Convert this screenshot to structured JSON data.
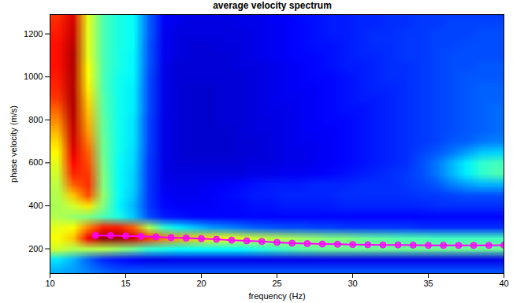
{
  "chart_data": {
    "type": "heatmap",
    "title": "average velocity spectrum",
    "x_label": "frequency (Hz)",
    "y_label": "phase velocity (m/s)",
    "xlim": [
      10,
      40
    ],
    "ylim": [
      85,
      1290
    ],
    "xticks": [
      10,
      15,
      20,
      25,
      30,
      35,
      40
    ],
    "yticks": [
      200,
      400,
      600,
      800,
      1000,
      1200
    ],
    "heatmap": {
      "x": [
        10.5,
        11.5,
        12.5,
        13.5,
        14.5,
        15.5,
        16.5,
        17.5,
        18.5,
        19.5,
        20.5,
        21.5,
        22.5,
        23.5,
        24.5,
        25.5,
        26.5,
        27.5,
        28.5,
        29.5,
        30.5,
        31.5,
        32.5,
        33.5,
        34.5,
        35.5,
        36.5,
        37.5,
        38.5,
        39.5
      ],
      "y": [
        1300,
        1250,
        1200,
        1150,
        1100,
        1050,
        1000,
        950,
        900,
        850,
        800,
        750,
        700,
        650,
        600,
        550,
        500,
        450,
        400,
        350,
        300,
        250,
        200,
        150,
        100
      ],
      "zlim": [
        0,
        1
      ],
      "values": [
        [
          0.82,
          0.9,
          0.6,
          0.45,
          0.4,
          0.38,
          0.22,
          0.12,
          0.1,
          0.1,
          0.1,
          0.1,
          0.1,
          0.1,
          0.12,
          0.12,
          0.14,
          0.14,
          0.15,
          0.15,
          0.16,
          0.16,
          0.17,
          0.17,
          0.18,
          0.18,
          0.18,
          0.18,
          0.18,
          0.18
        ],
        [
          0.84,
          0.92,
          0.6,
          0.45,
          0.4,
          0.38,
          0.22,
          0.12,
          0.1,
          0.09,
          0.09,
          0.09,
          0.1,
          0.1,
          0.11,
          0.12,
          0.13,
          0.14,
          0.15,
          0.15,
          0.16,
          0.16,
          0.17,
          0.17,
          0.18,
          0.18,
          0.19,
          0.19,
          0.19,
          0.19
        ],
        [
          0.85,
          0.93,
          0.6,
          0.45,
          0.4,
          0.38,
          0.22,
          0.11,
          0.09,
          0.09,
          0.09,
          0.09,
          0.09,
          0.1,
          0.11,
          0.12,
          0.13,
          0.14,
          0.15,
          0.15,
          0.16,
          0.17,
          0.17,
          0.18,
          0.18,
          0.19,
          0.19,
          0.19,
          0.2,
          0.2
        ],
        [
          0.86,
          0.94,
          0.6,
          0.45,
          0.4,
          0.38,
          0.21,
          0.11,
          0.09,
          0.08,
          0.08,
          0.09,
          0.09,
          0.1,
          0.11,
          0.12,
          0.13,
          0.14,
          0.14,
          0.15,
          0.16,
          0.17,
          0.17,
          0.18,
          0.18,
          0.19,
          0.19,
          0.2,
          0.2,
          0.2
        ],
        [
          0.86,
          0.95,
          0.6,
          0.45,
          0.4,
          0.37,
          0.21,
          0.11,
          0.09,
          0.08,
          0.08,
          0.08,
          0.09,
          0.1,
          0.11,
          0.12,
          0.13,
          0.13,
          0.14,
          0.15,
          0.16,
          0.16,
          0.17,
          0.18,
          0.18,
          0.19,
          0.2,
          0.2,
          0.2,
          0.2
        ],
        [
          0.86,
          0.95,
          0.62,
          0.45,
          0.4,
          0.37,
          0.21,
          0.1,
          0.08,
          0.08,
          0.08,
          0.08,
          0.09,
          0.09,
          0.1,
          0.11,
          0.12,
          0.13,
          0.14,
          0.15,
          0.15,
          0.16,
          0.17,
          0.17,
          0.18,
          0.19,
          0.2,
          0.2,
          0.21,
          0.21
        ],
        [
          0.85,
          0.95,
          0.62,
          0.45,
          0.39,
          0.37,
          0.2,
          0.1,
          0.08,
          0.08,
          0.08,
          0.08,
          0.08,
          0.09,
          0.1,
          0.11,
          0.12,
          0.13,
          0.13,
          0.14,
          0.15,
          0.16,
          0.17,
          0.17,
          0.18,
          0.19,
          0.2,
          0.21,
          0.21,
          0.21
        ],
        [
          0.84,
          0.95,
          0.64,
          0.45,
          0.39,
          0.36,
          0.2,
          0.1,
          0.08,
          0.07,
          0.07,
          0.08,
          0.08,
          0.09,
          0.1,
          0.11,
          0.12,
          0.12,
          0.13,
          0.14,
          0.15,
          0.16,
          0.16,
          0.17,
          0.18,
          0.19,
          0.2,
          0.21,
          0.22,
          0.22
        ],
        [
          0.82,
          0.95,
          0.66,
          0.46,
          0.39,
          0.36,
          0.2,
          0.1,
          0.08,
          0.07,
          0.07,
          0.08,
          0.08,
          0.09,
          0.1,
          0.11,
          0.11,
          0.12,
          0.13,
          0.14,
          0.15,
          0.15,
          0.16,
          0.17,
          0.18,
          0.19,
          0.2,
          0.21,
          0.22,
          0.22
        ],
        [
          0.78,
          0.95,
          0.68,
          0.46,
          0.39,
          0.36,
          0.2,
          0.1,
          0.08,
          0.07,
          0.07,
          0.08,
          0.08,
          0.09,
          0.1,
          0.1,
          0.11,
          0.12,
          0.13,
          0.14,
          0.14,
          0.15,
          0.16,
          0.17,
          0.18,
          0.19,
          0.2,
          0.21,
          0.22,
          0.23
        ],
        [
          0.74,
          0.94,
          0.7,
          0.47,
          0.39,
          0.35,
          0.19,
          0.1,
          0.08,
          0.07,
          0.07,
          0.08,
          0.08,
          0.09,
          0.09,
          0.1,
          0.11,
          0.12,
          0.13,
          0.13,
          0.14,
          0.15,
          0.16,
          0.17,
          0.18,
          0.19,
          0.2,
          0.21,
          0.22,
          0.23
        ],
        [
          0.7,
          0.93,
          0.72,
          0.47,
          0.39,
          0.35,
          0.19,
          0.1,
          0.08,
          0.07,
          0.07,
          0.07,
          0.08,
          0.09,
          0.09,
          0.1,
          0.11,
          0.12,
          0.12,
          0.13,
          0.14,
          0.15,
          0.16,
          0.17,
          0.18,
          0.19,
          0.2,
          0.21,
          0.22,
          0.23
        ],
        [
          0.66,
          0.92,
          0.75,
          0.48,
          0.39,
          0.35,
          0.19,
          0.1,
          0.08,
          0.07,
          0.07,
          0.07,
          0.08,
          0.08,
          0.09,
          0.1,
          0.11,
          0.11,
          0.12,
          0.13,
          0.14,
          0.15,
          0.16,
          0.17,
          0.18,
          0.19,
          0.21,
          0.22,
          0.24,
          0.25
        ],
        [
          0.63,
          0.9,
          0.78,
          0.48,
          0.39,
          0.34,
          0.19,
          0.1,
          0.08,
          0.07,
          0.07,
          0.07,
          0.08,
          0.08,
          0.09,
          0.1,
          0.1,
          0.11,
          0.12,
          0.13,
          0.14,
          0.15,
          0.16,
          0.17,
          0.19,
          0.21,
          0.24,
          0.28,
          0.32,
          0.33
        ],
        [
          0.6,
          0.87,
          0.8,
          0.49,
          0.38,
          0.34,
          0.18,
          0.1,
          0.08,
          0.08,
          0.08,
          0.08,
          0.08,
          0.09,
          0.09,
          0.1,
          0.1,
          0.11,
          0.12,
          0.13,
          0.14,
          0.15,
          0.16,
          0.17,
          0.2,
          0.24,
          0.3,
          0.36,
          0.42,
          0.44
        ],
        [
          0.58,
          0.84,
          0.82,
          0.5,
          0.38,
          0.33,
          0.18,
          0.1,
          0.09,
          0.09,
          0.09,
          0.09,
          0.09,
          0.1,
          0.1,
          0.11,
          0.11,
          0.12,
          0.13,
          0.14,
          0.15,
          0.16,
          0.17,
          0.18,
          0.2,
          0.24,
          0.3,
          0.36,
          0.42,
          0.45
        ],
        [
          0.56,
          0.78,
          0.83,
          0.5,
          0.38,
          0.33,
          0.18,
          0.11,
          0.1,
          0.1,
          0.11,
          0.12,
          0.13,
          0.14,
          0.15,
          0.15,
          0.15,
          0.16,
          0.16,
          0.16,
          0.17,
          0.17,
          0.17,
          0.18,
          0.19,
          0.21,
          0.25,
          0.28,
          0.3,
          0.3
        ],
        [
          0.55,
          0.68,
          0.8,
          0.52,
          0.38,
          0.32,
          0.18,
          0.12,
          0.11,
          0.11,
          0.12,
          0.13,
          0.14,
          0.15,
          0.15,
          0.16,
          0.16,
          0.16,
          0.16,
          0.17,
          0.17,
          0.17,
          0.17,
          0.17,
          0.18,
          0.18,
          0.19,
          0.2,
          0.2,
          0.2
        ],
        [
          0.54,
          0.58,
          0.65,
          0.5,
          0.37,
          0.3,
          0.18,
          0.13,
          0.12,
          0.12,
          0.12,
          0.13,
          0.13,
          0.14,
          0.14,
          0.15,
          0.15,
          0.15,
          0.15,
          0.16,
          0.16,
          0.16,
          0.16,
          0.16,
          0.16,
          0.17,
          0.17,
          0.17,
          0.17,
          0.17
        ],
        [
          0.55,
          0.52,
          0.5,
          0.45,
          0.4,
          0.32,
          0.2,
          0.15,
          0.14,
          0.13,
          0.13,
          0.13,
          0.13,
          0.13,
          0.13,
          0.13,
          0.13,
          0.13,
          0.13,
          0.13,
          0.13,
          0.13,
          0.13,
          0.13,
          0.13,
          0.13,
          0.13,
          0.13,
          0.13,
          0.13
        ],
        [
          0.6,
          0.62,
          0.75,
          0.85,
          0.85,
          0.78,
          0.55,
          0.42,
          0.36,
          0.32,
          0.28,
          0.26,
          0.24,
          0.22,
          0.21,
          0.2,
          0.2,
          0.19,
          0.19,
          0.18,
          0.18,
          0.18,
          0.18,
          0.18,
          0.17,
          0.17,
          0.17,
          0.17,
          0.17,
          0.17
        ],
        [
          0.62,
          0.68,
          0.88,
          0.98,
          0.97,
          0.92,
          0.82,
          0.76,
          0.72,
          0.68,
          0.65,
          0.62,
          0.6,
          0.58,
          0.56,
          0.55,
          0.53,
          0.52,
          0.5,
          0.5,
          0.48,
          0.47,
          0.46,
          0.45,
          0.45,
          0.44,
          0.44,
          0.44,
          0.44,
          0.44
        ],
        [
          0.58,
          0.55,
          0.55,
          0.55,
          0.52,
          0.48,
          0.42,
          0.4,
          0.38,
          0.38,
          0.38,
          0.38,
          0.38,
          0.4,
          0.42,
          0.44,
          0.46,
          0.47,
          0.48,
          0.48,
          0.48,
          0.48,
          0.48,
          0.48,
          0.48,
          0.48,
          0.48,
          0.48,
          0.48,
          0.48
        ],
        [
          0.35,
          0.3,
          0.22,
          0.16,
          0.14,
          0.12,
          0.1,
          0.1,
          0.1,
          0.1,
          0.1,
          0.1,
          0.1,
          0.1,
          0.1,
          0.1,
          0.1,
          0.1,
          0.1,
          0.1,
          0.1,
          0.1,
          0.1,
          0.1,
          0.1,
          0.1,
          0.1,
          0.1,
          0.1,
          0.1
        ],
        [
          0.3,
          0.28,
          0.25,
          0.22,
          0.2,
          0.2,
          0.2,
          0.2,
          0.2,
          0.2,
          0.2,
          0.2,
          0.2,
          0.2,
          0.2,
          0.2,
          0.2,
          0.2,
          0.2,
          0.2,
          0.2,
          0.2,
          0.2,
          0.2,
          0.2,
          0.2,
          0.2,
          0.2,
          0.2,
          0.2
        ]
      ]
    },
    "series": [
      {
        "type": "line",
        "color": "#ff00ff",
        "marker": "o",
        "line_style": "solid",
        "x": [
          13,
          14,
          15,
          16,
          17,
          18,
          19,
          20,
          21,
          22,
          23,
          24,
          25,
          26,
          27,
          28,
          29,
          30,
          31,
          32,
          33,
          34,
          35,
          36,
          37,
          38,
          39,
          40
        ],
        "values": [
          262,
          262,
          260,
          258,
          255,
          252,
          250,
          247,
          244,
          240,
          237,
          234,
          230,
          226,
          224,
          222,
          221,
          220,
          219,
          218,
          218,
          217,
          216,
          216,
          216,
          216,
          216,
          217
        ]
      }
    ]
  }
}
